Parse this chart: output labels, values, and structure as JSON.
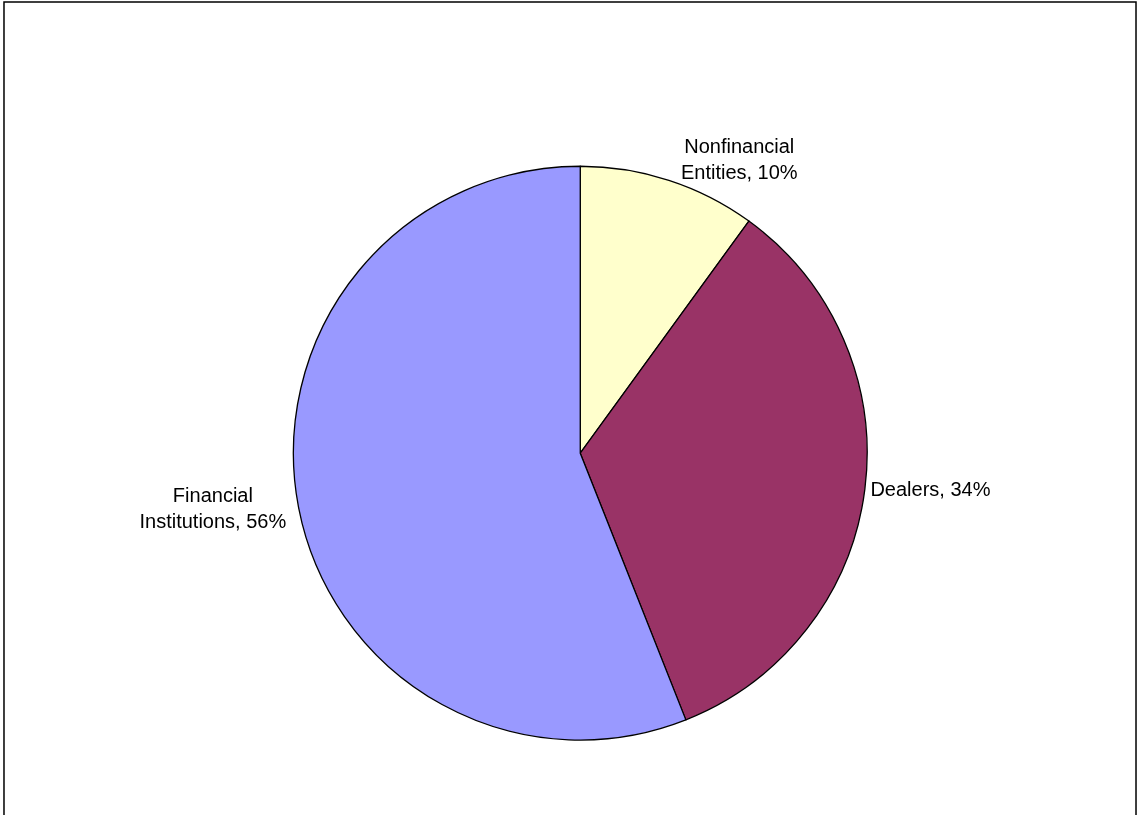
{
  "chart_data": {
    "type": "pie",
    "categories": [
      "Nonfinancial Entities",
      "Dealers",
      "Financial Institutions"
    ],
    "values": [
      10,
      34,
      56
    ],
    "value_labels": [
      "10%",
      "34%",
      "56%"
    ],
    "colors": [
      "#ffffcc",
      "#993366",
      "#9999ff"
    ],
    "legend": false
  }
}
